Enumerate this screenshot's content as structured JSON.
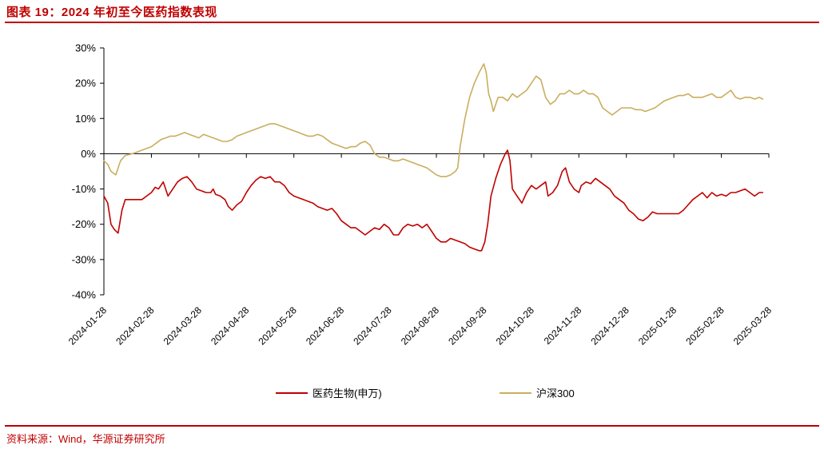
{
  "header": {
    "title": "图表 19：2024 年初至今医药指数表现"
  },
  "footer": {
    "source": "资料来源：Wind，华源证券研究所"
  },
  "colors": {
    "accent": "#c00000",
    "series_pharma": "#c00000",
    "series_csi300": "#c9ae5e"
  },
  "chart_data": {
    "type": "line",
    "title": "2024 年初至今医药指数表现",
    "xlabel": "",
    "ylabel": "",
    "ylim": [
      -40,
      30
    ],
    "ytick_labels": [
      "30%",
      "20%",
      "10%",
      "0%",
      "-10%",
      "-20%",
      "-30%",
      "-40%"
    ],
    "x_tick_labels": [
      "2024-01-28",
      "2024-02-28",
      "2024-03-28",
      "2024-04-28",
      "2024-05-28",
      "2024-06-28",
      "2024-07-28",
      "2024-08-28",
      "2024-09-28",
      "2024-10-28",
      "2024-11-28",
      "2024-12-28",
      "2025-01-28",
      "2025-02-28",
      "2025-03-28"
    ],
    "x_range_months": [
      0,
      14
    ],
    "legend_position": "bottom",
    "series": [
      {
        "name": "医药生物(申万)",
        "color": "#c00000",
        "points": [
          [
            0,
            -12
          ],
          [
            0.08,
            -14
          ],
          [
            0.15,
            -20
          ],
          [
            0.22,
            -21.5
          ],
          [
            0.3,
            -22.5
          ],
          [
            0.38,
            -16
          ],
          [
            0.45,
            -13
          ],
          [
            0.6,
            -13
          ],
          [
            0.8,
            -13
          ],
          [
            0.9,
            -12
          ],
          [
            1.0,
            -11
          ],
          [
            1.08,
            -9.5
          ],
          [
            1.15,
            -10
          ],
          [
            1.25,
            -8
          ],
          [
            1.35,
            -12
          ],
          [
            1.45,
            -10
          ],
          [
            1.55,
            -8
          ],
          [
            1.65,
            -7
          ],
          [
            1.75,
            -6.5
          ],
          [
            1.85,
            -8
          ],
          [
            1.95,
            -10
          ],
          [
            2.05,
            -10.5
          ],
          [
            2.15,
            -11
          ],
          [
            2.25,
            -11
          ],
          [
            2.3,
            -10
          ],
          [
            2.35,
            -11.5
          ],
          [
            2.45,
            -12
          ],
          [
            2.55,
            -13
          ],
          [
            2.62,
            -15
          ],
          [
            2.7,
            -16
          ],
          [
            2.8,
            -14.5
          ],
          [
            2.9,
            -13.5
          ],
          [
            3.0,
            -11
          ],
          [
            3.1,
            -9
          ],
          [
            3.2,
            -7.5
          ],
          [
            3.3,
            -6.5
          ],
          [
            3.4,
            -7
          ],
          [
            3.5,
            -6.5
          ],
          [
            3.6,
            -8
          ],
          [
            3.7,
            -8
          ],
          [
            3.8,
            -9
          ],
          [
            3.9,
            -11
          ],
          [
            4.0,
            -12
          ],
          [
            4.1,
            -12.5
          ],
          [
            4.2,
            -13
          ],
          [
            4.3,
            -13.5
          ],
          [
            4.4,
            -14
          ],
          [
            4.5,
            -15
          ],
          [
            4.6,
            -15.5
          ],
          [
            4.7,
            -16
          ],
          [
            4.8,
            -15.5
          ],
          [
            4.9,
            -17
          ],
          [
            5.0,
            -19
          ],
          [
            5.1,
            -20
          ],
          [
            5.2,
            -21
          ],
          [
            5.3,
            -21
          ],
          [
            5.4,
            -22
          ],
          [
            5.5,
            -23
          ],
          [
            5.6,
            -22
          ],
          [
            5.7,
            -21
          ],
          [
            5.8,
            -21.5
          ],
          [
            5.9,
            -20
          ],
          [
            6.0,
            -21
          ],
          [
            6.1,
            -23
          ],
          [
            6.2,
            -23
          ],
          [
            6.3,
            -21
          ],
          [
            6.4,
            -20
          ],
          [
            6.5,
            -20.5
          ],
          [
            6.6,
            -20
          ],
          [
            6.7,
            -21
          ],
          [
            6.8,
            -20
          ],
          [
            6.9,
            -22
          ],
          [
            7.0,
            -24
          ],
          [
            7.1,
            -25
          ],
          [
            7.2,
            -25
          ],
          [
            7.3,
            -24
          ],
          [
            7.4,
            -24.5
          ],
          [
            7.5,
            -25
          ],
          [
            7.6,
            -25.5
          ],
          [
            7.7,
            -26.5
          ],
          [
            7.8,
            -27
          ],
          [
            7.9,
            -27.5
          ],
          [
            7.95,
            -27.5
          ],
          [
            8.02,
            -25
          ],
          [
            8.08,
            -20
          ],
          [
            8.15,
            -12
          ],
          [
            8.25,
            -7
          ],
          [
            8.35,
            -3
          ],
          [
            8.45,
            0
          ],
          [
            8.5,
            1
          ],
          [
            8.55,
            -2
          ],
          [
            8.6,
            -10
          ],
          [
            8.7,
            -12
          ],
          [
            8.8,
            -14
          ],
          [
            8.9,
            -11
          ],
          [
            9.0,
            -9
          ],
          [
            9.1,
            -10
          ],
          [
            9.2,
            -9
          ],
          [
            9.3,
            -8
          ],
          [
            9.35,
            -12
          ],
          [
            9.45,
            -11
          ],
          [
            9.55,
            -9
          ],
          [
            9.65,
            -5
          ],
          [
            9.72,
            -4
          ],
          [
            9.8,
            -8
          ],
          [
            9.9,
            -10
          ],
          [
            10.0,
            -11
          ],
          [
            10.05,
            -9
          ],
          [
            10.15,
            -8
          ],
          [
            10.25,
            -8.5
          ],
          [
            10.35,
            -7
          ],
          [
            10.45,
            -8
          ],
          [
            10.55,
            -9
          ],
          [
            10.65,
            -10
          ],
          [
            10.75,
            -12
          ],
          [
            10.85,
            -13
          ],
          [
            10.95,
            -14
          ],
          [
            11.05,
            -16
          ],
          [
            11.15,
            -17
          ],
          [
            11.25,
            -18.5
          ],
          [
            11.35,
            -19
          ],
          [
            11.45,
            -18
          ],
          [
            11.55,
            -16.5
          ],
          [
            11.65,
            -17
          ],
          [
            11.8,
            -17
          ],
          [
            12.0,
            -17
          ],
          [
            12.1,
            -17
          ],
          [
            12.2,
            -16
          ],
          [
            12.3,
            -14.5
          ],
          [
            12.4,
            -13
          ],
          [
            12.5,
            -12
          ],
          [
            12.6,
            -11
          ],
          [
            12.7,
            -12.5
          ],
          [
            12.8,
            -11
          ],
          [
            12.9,
            -12
          ],
          [
            13.0,
            -11.5
          ],
          [
            13.1,
            -12
          ],
          [
            13.2,
            -11
          ],
          [
            13.3,
            -11
          ],
          [
            13.4,
            -10.5
          ],
          [
            13.5,
            -10
          ],
          [
            13.6,
            -11
          ],
          [
            13.7,
            -12
          ],
          [
            13.8,
            -11
          ],
          [
            13.87,
            -11
          ]
        ]
      },
      {
        "name": "沪深300",
        "color": "#c9ae5e",
        "points": [
          [
            0,
            -2
          ],
          [
            0.08,
            -3
          ],
          [
            0.15,
            -5
          ],
          [
            0.25,
            -6
          ],
          [
            0.35,
            -2
          ],
          [
            0.45,
            -0.5
          ],
          [
            0.6,
            0
          ],
          [
            0.8,
            1
          ],
          [
            0.9,
            1.5
          ],
          [
            1.0,
            2
          ],
          [
            1.1,
            3
          ],
          [
            1.2,
            4
          ],
          [
            1.3,
            4.5
          ],
          [
            1.4,
            5
          ],
          [
            1.5,
            5
          ],
          [
            1.6,
            5.5
          ],
          [
            1.7,
            6
          ],
          [
            1.8,
            5.5
          ],
          [
            1.9,
            5
          ],
          [
            2.0,
            4.5
          ],
          [
            2.1,
            5.5
          ],
          [
            2.2,
            5
          ],
          [
            2.3,
            4.5
          ],
          [
            2.4,
            4
          ],
          [
            2.5,
            3.5
          ],
          [
            2.6,
            3.5
          ],
          [
            2.7,
            4
          ],
          [
            2.8,
            5
          ],
          [
            2.9,
            5.5
          ],
          [
            3.0,
            6
          ],
          [
            3.1,
            6.5
          ],
          [
            3.2,
            7
          ],
          [
            3.3,
            7.5
          ],
          [
            3.4,
            8
          ],
          [
            3.5,
            8.5
          ],
          [
            3.6,
            8.5
          ],
          [
            3.7,
            8
          ],
          [
            3.8,
            7.5
          ],
          [
            3.9,
            7
          ],
          [
            4.0,
            6.5
          ],
          [
            4.1,
            6
          ],
          [
            4.2,
            5.5
          ],
          [
            4.3,
            5
          ],
          [
            4.4,
            5
          ],
          [
            4.5,
            5.5
          ],
          [
            4.6,
            5
          ],
          [
            4.7,
            4
          ],
          [
            4.8,
            3
          ],
          [
            4.9,
            2.5
          ],
          [
            5.0,
            2
          ],
          [
            5.1,
            1.5
          ],
          [
            5.2,
            2
          ],
          [
            5.3,
            2
          ],
          [
            5.4,
            3
          ],
          [
            5.5,
            3.5
          ],
          [
            5.6,
            2.5
          ],
          [
            5.7,
            0
          ],
          [
            5.8,
            -1
          ],
          [
            5.9,
            -1
          ],
          [
            6.0,
            -1.5
          ],
          [
            6.1,
            -2
          ],
          [
            6.2,
            -2
          ],
          [
            6.3,
            -1.5
          ],
          [
            6.4,
            -2
          ],
          [
            6.5,
            -2.5
          ],
          [
            6.6,
            -3
          ],
          [
            6.7,
            -3.5
          ],
          [
            6.8,
            -4
          ],
          [
            6.9,
            -5
          ],
          [
            7.0,
            -6
          ],
          [
            7.1,
            -6.5
          ],
          [
            7.2,
            -6.5
          ],
          [
            7.3,
            -6
          ],
          [
            7.4,
            -5
          ],
          [
            7.45,
            -4
          ],
          [
            7.5,
            2
          ],
          [
            7.6,
            10
          ],
          [
            7.7,
            16
          ],
          [
            7.8,
            20
          ],
          [
            7.9,
            23
          ],
          [
            8.0,
            25.5
          ],
          [
            8.05,
            23
          ],
          [
            8.1,
            17
          ],
          [
            8.15,
            15
          ],
          [
            8.2,
            12
          ],
          [
            8.3,
            16
          ],
          [
            8.4,
            16
          ],
          [
            8.5,
            15
          ],
          [
            8.6,
            17
          ],
          [
            8.7,
            16
          ],
          [
            8.8,
            17
          ],
          [
            8.9,
            18
          ],
          [
            9.0,
            20
          ],
          [
            9.1,
            22
          ],
          [
            9.2,
            21
          ],
          [
            9.3,
            16
          ],
          [
            9.4,
            14
          ],
          [
            9.5,
            15
          ],
          [
            9.6,
            17
          ],
          [
            9.7,
            17
          ],
          [
            9.8,
            18
          ],
          [
            9.9,
            17
          ],
          [
            10.0,
            17
          ],
          [
            10.1,
            18
          ],
          [
            10.2,
            17
          ],
          [
            10.3,
            17
          ],
          [
            10.4,
            16
          ],
          [
            10.5,
            13
          ],
          [
            10.6,
            12
          ],
          [
            10.7,
            11
          ],
          [
            10.8,
            12
          ],
          [
            10.9,
            13
          ],
          [
            11.0,
            13
          ],
          [
            11.1,
            13
          ],
          [
            11.2,
            12.5
          ],
          [
            11.3,
            12.5
          ],
          [
            11.4,
            12
          ],
          [
            11.5,
            12.5
          ],
          [
            11.6,
            13
          ],
          [
            11.7,
            14
          ],
          [
            11.8,
            15
          ],
          [
            11.9,
            15.5
          ],
          [
            12.0,
            16
          ],
          [
            12.1,
            16.5
          ],
          [
            12.2,
            16.5
          ],
          [
            12.3,
            17
          ],
          [
            12.4,
            16
          ],
          [
            12.5,
            16
          ],
          [
            12.6,
            16
          ],
          [
            12.7,
            16.5
          ],
          [
            12.8,
            17
          ],
          [
            12.9,
            16
          ],
          [
            13.0,
            16
          ],
          [
            13.1,
            17
          ],
          [
            13.2,
            18
          ],
          [
            13.3,
            16
          ],
          [
            13.4,
            15.5
          ],
          [
            13.5,
            16
          ],
          [
            13.6,
            16
          ],
          [
            13.7,
            15.5
          ],
          [
            13.8,
            16
          ],
          [
            13.87,
            15.5
          ]
        ]
      }
    ]
  }
}
